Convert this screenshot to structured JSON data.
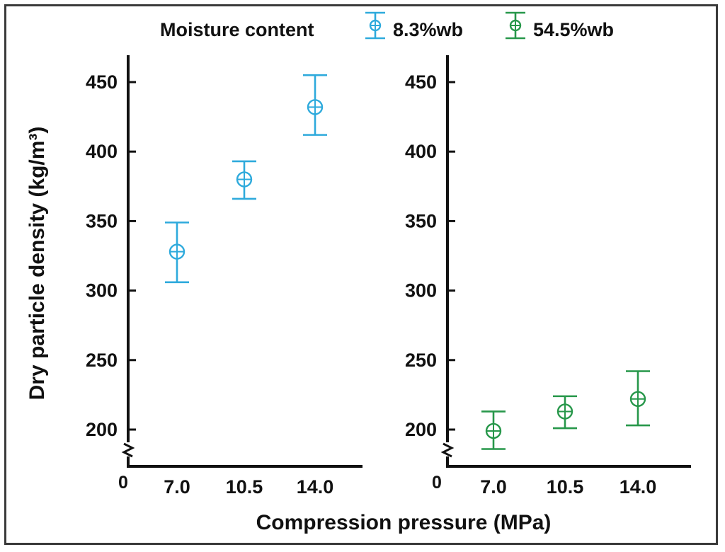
{
  "chart_data": {
    "type": "scatter",
    "ylabel": "Dry particle density (kg/m³)",
    "xlabel": "Compression pressure (MPa)",
    "axis_origin_label": "0",
    "ylim": [
      175,
      465
    ],
    "y_ticks": [
      200,
      250,
      300,
      350,
      400,
      450
    ],
    "y_tick_labels": [
      "200",
      "250",
      "300",
      "350",
      "400",
      "450"
    ],
    "categories": [
      "7.0",
      "10.5",
      "14.0"
    ],
    "legend": {
      "title": "Moisture content",
      "placement": "top"
    },
    "series": [
      {
        "name": "8.3%wb",
        "color": "#2eaadc",
        "values": [
          328,
          380,
          432
        ],
        "err_low": [
          306,
          366,
          412
        ],
        "err_high": [
          349,
          393,
          455
        ]
      },
      {
        "name": "54.5%wb",
        "color": "#27974a",
        "values": [
          199,
          213,
          222
        ],
        "err_low": [
          186,
          201,
          203
        ],
        "err_high": [
          213,
          224,
          242
        ]
      }
    ]
  }
}
